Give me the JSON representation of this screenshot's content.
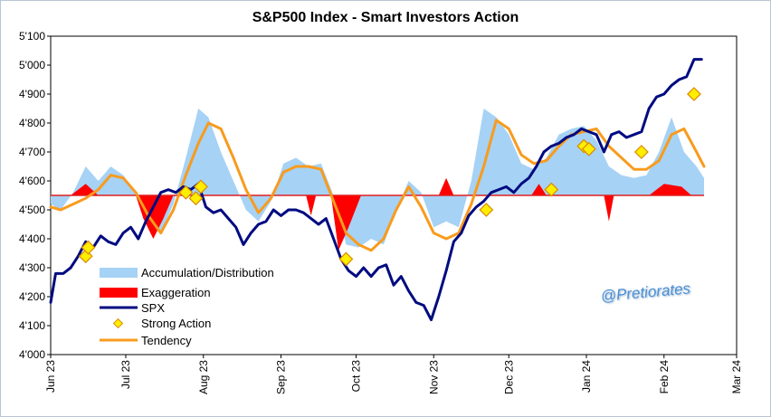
{
  "chart_data": {
    "type": "line",
    "title": "S&P500 Index - Smart Investors Action",
    "watermark": "@Pretiorates",
    "ylim": [
      4000,
      5100
    ],
    "yticks": [
      "4'000",
      "4'100",
      "4'200",
      "4'300",
      "4'400",
      "4'500",
      "4'600",
      "4'700",
      "4'800",
      "4'900",
      "5'000",
      "5'100"
    ],
    "ytick_values": [
      4000,
      4100,
      4200,
      4300,
      4400,
      4500,
      4600,
      4700,
      4800,
      4900,
      5000,
      5100
    ],
    "xlim": [
      "2023-06-01",
      "2024-03-01"
    ],
    "xticks": [
      "Jun 23",
      "Jul 23",
      "Aug 23",
      "Sep 23",
      "Oct 23",
      "Nov 23",
      "Dec 23",
      "Jan 24",
      "Feb 24",
      "Mar 24"
    ],
    "xtick_dates": [
      "2023-06-01",
      "2023-07-01",
      "2023-08-01",
      "2023-09-01",
      "2023-10-01",
      "2023-11-01",
      "2023-12-01",
      "2024-01-01",
      "2024-02-01",
      "2024-03-01"
    ],
    "baseline": 4550,
    "grid": false,
    "legend_position": "bottom-left",
    "colors": {
      "accumulation": "#a6d2f5",
      "exaggeration": "#ff0000",
      "spx": "#000b80",
      "tendency": "#f89b1e",
      "strong_action": "#ffee00",
      "strong_action_edge": "#d98a00",
      "baseline": "#e02020"
    },
    "series": [
      {
        "name": "SPX",
        "dates": [
          "2023-06-01",
          "2023-06-03",
          "2023-06-06",
          "2023-06-09",
          "2023-06-12",
          "2023-06-15",
          "2023-06-18",
          "2023-06-21",
          "2023-06-24",
          "2023-06-27",
          "2023-06-30",
          "2023-07-03",
          "2023-07-06",
          "2023-07-09",
          "2023-07-12",
          "2023-07-15",
          "2023-07-18",
          "2023-07-21",
          "2023-07-24",
          "2023-07-27",
          "2023-07-30",
          "2023-08-02",
          "2023-08-05",
          "2023-08-08",
          "2023-08-11",
          "2023-08-14",
          "2023-08-17",
          "2023-08-20",
          "2023-08-23",
          "2023-08-26",
          "2023-08-29",
          "2023-09-01",
          "2023-09-04",
          "2023-09-07",
          "2023-09-10",
          "2023-09-13",
          "2023-09-16",
          "2023-09-19",
          "2023-09-22",
          "2023-09-25",
          "2023-09-28",
          "2023-10-01",
          "2023-10-04",
          "2023-10-07",
          "2023-10-10",
          "2023-10-13",
          "2023-10-16",
          "2023-10-19",
          "2023-10-22",
          "2023-10-25",
          "2023-10-28",
          "2023-10-31",
          "2023-11-03",
          "2023-11-06",
          "2023-11-09",
          "2023-11-12",
          "2023-11-15",
          "2023-11-18",
          "2023-11-21",
          "2023-11-24",
          "2023-11-27",
          "2023-11-30",
          "2023-12-03",
          "2023-12-06",
          "2023-12-09",
          "2023-12-12",
          "2023-12-15",
          "2023-12-18",
          "2023-12-21",
          "2023-12-24",
          "2023-12-27",
          "2023-12-30",
          "2024-01-02",
          "2024-01-05",
          "2024-01-08",
          "2024-01-11",
          "2024-01-14",
          "2024-01-17",
          "2024-01-20",
          "2024-01-23",
          "2024-01-26",
          "2024-01-29",
          "2024-02-01",
          "2024-02-04",
          "2024-02-07",
          "2024-02-10",
          "2024-02-13",
          "2024-02-16"
        ],
        "values": [
          4180,
          4280,
          4280,
          4300,
          4340,
          4390,
          4370,
          4410,
          4390,
          4380,
          4420,
          4440,
          4400,
          4460,
          4510,
          4560,
          4570,
          4560,
          4580,
          4570,
          4590,
          4510,
          4490,
          4500,
          4470,
          4440,
          4380,
          4420,
          4450,
          4460,
          4500,
          4480,
          4500,
          4500,
          4490,
          4470,
          4450,
          4470,
          4400,
          4330,
          4290,
          4270,
          4300,
          4270,
          4300,
          4310,
          4240,
          4270,
          4220,
          4180,
          4170,
          4120,
          4200,
          4290,
          4390,
          4420,
          4480,
          4510,
          4530,
          4560,
          4570,
          4580,
          4560,
          4590,
          4610,
          4650,
          4700,
          4720,
          4730,
          4750,
          4760,
          4780,
          4770,
          4760,
          4700,
          4760,
          4770,
          4750,
          4760,
          4770,
          4850,
          4890,
          4900,
          4930,
          4950,
          4960,
          5020,
          5020
        ]
      },
      {
        "name": "Tendency",
        "dates": [
          "2023-06-01",
          "2023-06-05",
          "2023-06-10",
          "2023-06-15",
          "2023-06-20",
          "2023-06-25",
          "2023-06-30",
          "2023-07-05",
          "2023-07-10",
          "2023-07-15",
          "2023-07-20",
          "2023-07-25",
          "2023-07-30",
          "2023-08-03",
          "2023-08-08",
          "2023-08-13",
          "2023-08-18",
          "2023-08-23",
          "2023-08-28",
          "2023-09-02",
          "2023-09-07",
          "2023-09-12",
          "2023-09-17",
          "2023-09-22",
          "2023-09-27",
          "2023-10-02",
          "2023-10-07",
          "2023-10-12",
          "2023-10-17",
          "2023-10-22",
          "2023-10-27",
          "2023-11-01",
          "2023-11-06",
          "2023-11-11",
          "2023-11-16",
          "2023-11-21",
          "2023-11-26",
          "2023-12-01",
          "2023-12-06",
          "2023-12-11",
          "2023-12-16",
          "2023-12-21",
          "2023-12-26",
          "2023-12-31",
          "2024-01-05",
          "2024-01-10",
          "2024-01-15",
          "2024-01-20",
          "2024-01-25",
          "2024-01-30",
          "2024-02-04",
          "2024-02-09",
          "2024-02-14",
          "2024-02-17"
        ],
        "values": [
          4510,
          4500,
          4520,
          4540,
          4570,
          4620,
          4610,
          4560,
          4480,
          4420,
          4500,
          4620,
          4730,
          4800,
          4780,
          4680,
          4570,
          4490,
          4540,
          4630,
          4650,
          4650,
          4640,
          4530,
          4420,
          4380,
          4360,
          4400,
          4500,
          4580,
          4510,
          4420,
          4400,
          4420,
          4520,
          4650,
          4810,
          4780,
          4690,
          4660,
          4670,
          4720,
          4760,
          4770,
          4780,
          4720,
          4680,
          4640,
          4640,
          4670,
          4760,
          4780,
          4700,
          4650
        ]
      },
      {
        "name": "Accumulation/Distribution",
        "dates": [
          "2023-06-01",
          "2023-06-05",
          "2023-06-10",
          "2023-06-15",
          "2023-06-20",
          "2023-06-25",
          "2023-06-30",
          "2023-07-05",
          "2023-07-10",
          "2023-07-15",
          "2023-07-20",
          "2023-07-25",
          "2023-07-30",
          "2023-08-03",
          "2023-08-08",
          "2023-08-13",
          "2023-08-18",
          "2023-08-23",
          "2023-08-28",
          "2023-09-02",
          "2023-09-07",
          "2023-09-12",
          "2023-09-17",
          "2023-09-22",
          "2023-09-27",
          "2023-10-02",
          "2023-10-07",
          "2023-10-12",
          "2023-10-17",
          "2023-10-22",
          "2023-10-27",
          "2023-11-01",
          "2023-11-06",
          "2023-11-11",
          "2023-11-16",
          "2023-11-21",
          "2023-11-26",
          "2023-12-01",
          "2023-12-06",
          "2023-12-11",
          "2023-12-16",
          "2023-12-21",
          "2023-12-26",
          "2023-12-31",
          "2024-01-05",
          "2024-01-10",
          "2024-01-15",
          "2024-01-20",
          "2024-01-25",
          "2024-01-30",
          "2024-02-04",
          "2024-02-09",
          "2024-02-14",
          "2024-02-17"
        ],
        "values": [
          4520,
          4500,
          4560,
          4650,
          4600,
          4650,
          4620,
          4560,
          4450,
          4420,
          4520,
          4680,
          4850,
          4820,
          4700,
          4600,
          4500,
          4460,
          4530,
          4660,
          4680,
          4650,
          4660,
          4550,
          4380,
          4370,
          4400,
          4380,
          4500,
          4600,
          4560,
          4440,
          4460,
          4440,
          4600,
          4850,
          4820,
          4760,
          4660,
          4640,
          4680,
          4760,
          4780,
          4790,
          4740,
          4650,
          4620,
          4610,
          4620,
          4700,
          4820,
          4700,
          4650,
          4610
        ]
      },
      {
        "name": "Exaggeration",
        "dates": [
          "2023-06-01",
          "2023-06-09",
          "2023-06-15",
          "2023-06-20",
          "2023-06-26",
          "2023-07-05",
          "2023-07-08",
          "2023-07-12",
          "2023-07-16",
          "2023-07-20",
          "2023-09-11",
          "2023-09-13",
          "2023-09-15",
          "2023-09-21",
          "2023-09-24",
          "2023-09-28",
          "2023-10-03",
          "2023-11-03",
          "2023-11-06",
          "2023-11-09",
          "2023-12-10",
          "2023-12-13",
          "2023-12-16",
          "2024-01-08",
          "2024-01-10",
          "2024-01-12",
          "2024-01-26",
          "2024-02-01",
          "2024-02-08",
          "2024-02-12"
        ],
        "values": [
          4550,
          4550,
          4590,
          4550,
          4550,
          4550,
          4470,
          4400,
          4470,
          4550,
          4550,
          4480,
          4550,
          4550,
          4360,
          4440,
          4550,
          4550,
          4610,
          4550,
          4550,
          4590,
          4550,
          4550,
          4460,
          4550,
          4550,
          4590,
          4580,
          4550
        ]
      },
      {
        "name": "Strong Action",
        "points": [
          {
            "date": "2023-06-15",
            "value": 4340
          },
          {
            "date": "2023-06-16",
            "value": 4370
          },
          {
            "date": "2023-07-25",
            "value": 4560
          },
          {
            "date": "2023-07-29",
            "value": 4540
          },
          {
            "date": "2023-07-31",
            "value": 4580
          },
          {
            "date": "2023-09-27",
            "value": 4330
          },
          {
            "date": "2023-11-22",
            "value": 4500
          },
          {
            "date": "2023-12-18",
            "value": 4570
          },
          {
            "date": "2023-12-31",
            "value": 4720
          },
          {
            "date": "2024-01-02",
            "value": 4710
          },
          {
            "date": "2024-01-23",
            "value": 4700
          },
          {
            "date": "2024-02-13",
            "value": 4900
          }
        ]
      }
    ]
  }
}
